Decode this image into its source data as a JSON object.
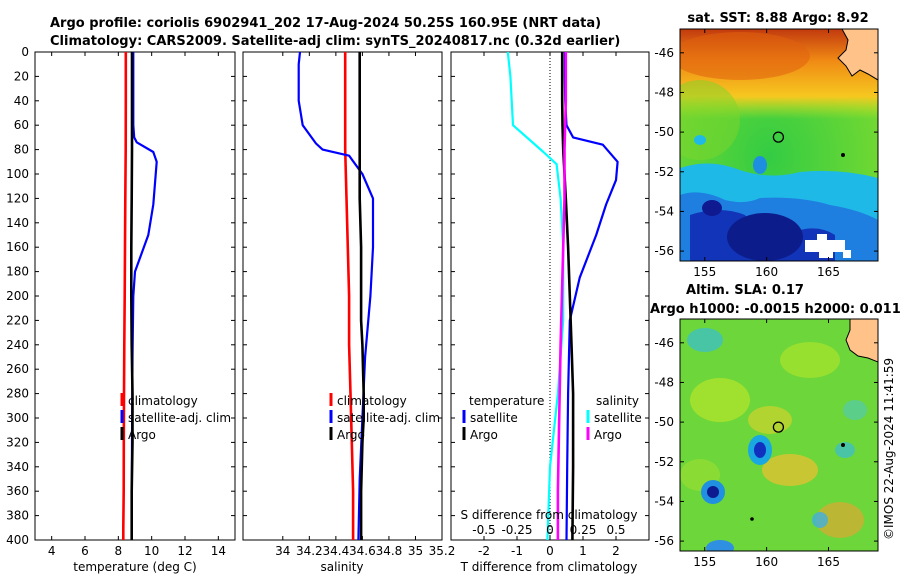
{
  "header": {
    "line1": "Argo profile: coriolis 6902941_202 17-Aug-2024 50.25S 160.95E (NRT data)",
    "line2": "Climatology: CARS2009. Satellite-adj clim: synTS_20240817.nc (0.32d earlier)"
  },
  "watermark": "©IMOS 22-Aug-2024 11:41:59",
  "colors": {
    "climatology": "#ff0000",
    "satellite": "#0000ff",
    "argo": "#000000",
    "salinity_satellite": "#00ffff",
    "salinity_diff": "#ff00ff"
  },
  "chart_data": [
    {
      "type": "line",
      "title": "",
      "xlabel": "temperature (deg C)",
      "ylabel": "",
      "xlim": [
        3,
        15
      ],
      "ylim": [
        400,
        0
      ],
      "xticks": [
        "4",
        "6",
        "8",
        "10",
        "12",
        "14"
      ],
      "xtick_values": [
        4,
        6,
        8,
        10,
        12,
        14
      ],
      "yticks": [
        "0",
        "20",
        "40",
        "60",
        "80",
        "100",
        "120",
        "140",
        "160",
        "180",
        "200",
        "220",
        "240",
        "260",
        "280",
        "300",
        "320",
        "340",
        "360",
        "380",
        "400"
      ],
      "ytick_values": [
        0,
        20,
        40,
        60,
        80,
        100,
        120,
        140,
        160,
        180,
        200,
        220,
        240,
        260,
        280,
        300,
        320,
        340,
        360,
        380,
        400
      ],
      "legend": [
        "climatology",
        "satellite-adj. clim",
        "Argo"
      ],
      "series": [
        {
          "name": "climatology",
          "color": "#ff0000",
          "x": [
            8.45,
            8.45,
            8.44,
            8.42,
            8.4,
            8.38,
            8.36,
            8.34,
            8.33,
            8.32,
            8.3,
            8.3
          ],
          "y": [
            0,
            40,
            80,
            120,
            160,
            200,
            240,
            280,
            320,
            360,
            390,
            400
          ]
        },
        {
          "name": "satellite-adj. clim",
          "color": "#0000ff",
          "x": [
            8.9,
            8.9,
            8.9,
            8.95,
            9.1,
            10.1,
            10.3,
            10.1,
            9.8,
            9.0,
            8.9,
            8.85,
            8.82,
            8.8
          ],
          "y": [
            0,
            40,
            60,
            70,
            74,
            82,
            90,
            125,
            150,
            180,
            200,
            250,
            320,
            400
          ]
        },
        {
          "name": "Argo",
          "color": "#000000",
          "x": [
            8.82,
            8.82,
            8.82,
            8.8,
            8.78,
            8.78,
            8.8,
            8.85,
            8.85,
            8.8,
            8.8
          ],
          "y": [
            0,
            40,
            80,
            120,
            160,
            200,
            240,
            280,
            320,
            360,
            400
          ]
        }
      ]
    },
    {
      "type": "line",
      "title": "",
      "xlabel": "salinity",
      "ylabel": "",
      "xlim": [
        33.7,
        35.2
      ],
      "ylim": [
        400,
        0
      ],
      "xticks": [
        "34",
        "34.2",
        "34.4",
        "34.6",
        "34.8",
        "35",
        "35.2"
      ],
      "xtick_values": [
        34,
        34.2,
        34.4,
        34.6,
        34.8,
        35,
        35.2
      ],
      "legend": [
        "climatology",
        "satellite-adj. clim",
        "Argo"
      ],
      "series": [
        {
          "name": "climatology",
          "color": "#ff0000",
          "x": [
            34.47,
            34.47,
            34.47,
            34.48,
            34.49,
            34.5,
            34.5,
            34.51,
            34.52,
            34.53,
            34.53
          ],
          "y": [
            0,
            40,
            80,
            120,
            160,
            200,
            240,
            280,
            320,
            360,
            400
          ]
        },
        {
          "name": "satellite-adj. clim",
          "color": "#0000ff",
          "x": [
            34.13,
            34.12,
            34.12,
            34.15,
            34.25,
            34.3,
            34.5,
            34.6,
            34.68,
            34.68,
            34.66,
            34.62,
            34.6,
            34.58,
            34.57
          ],
          "y": [
            0,
            10,
            40,
            60,
            75,
            80,
            85,
            100,
            120,
            160,
            200,
            250,
            300,
            350,
            400
          ]
        },
        {
          "name": "Argo",
          "color": "#000000",
          "x": [
            34.58,
            34.58,
            34.58,
            34.58,
            34.59,
            34.59,
            34.59,
            34.6,
            34.61,
            34.61,
            34.6,
            34.59,
            34.59
          ],
          "y": [
            0,
            40,
            80,
            120,
            160,
            200,
            220,
            240,
            280,
            300,
            320,
            360,
            400
          ]
        }
      ]
    },
    {
      "type": "line",
      "title": "",
      "xlabel": "T difference from climatology",
      "ylabel": "",
      "xlim": [
        -3.0,
        3.0
      ],
      "ylim": [
        400,
        0
      ],
      "xticks": [
        "-2",
        "-1",
        "0",
        "1",
        "2"
      ],
      "xtick_values": [
        -2,
        -1,
        0,
        1,
        2
      ],
      "secondary_x": {
        "label": "S difference from climatology",
        "xlim": [
          -0.75,
          0.75
        ],
        "xticks": [
          "-0.5",
          "-0.25",
          "0",
          "0.25",
          "0.5"
        ],
        "xtick_values": [
          -0.5,
          -0.25,
          0,
          0.25,
          0.5
        ]
      },
      "legend_temperature_title": "temperature",
      "legend_salinity_title": "salinity",
      "legend": [
        "satellite",
        "Argo",
        "satellite",
        "Argo"
      ],
      "series": [
        {
          "name": "temperature satellite",
          "color": "#0000ff",
          "x": [
            0.45,
            0.45,
            0.46,
            0.5,
            0.7,
            1.6,
            2.05,
            2.0,
            1.7,
            1.4,
            0.9,
            0.6,
            0.55,
            0.52,
            0.5
          ],
          "y": [
            0,
            20,
            40,
            60,
            70,
            76,
            90,
            105,
            125,
            150,
            185,
            220,
            280,
            340,
            400
          ]
        },
        {
          "name": "temperature Argo",
          "color": "#000000",
          "x": [
            0.37,
            0.37,
            0.38,
            0.4,
            0.48,
            0.55,
            0.6,
            0.65,
            0.7,
            0.7,
            0.68
          ],
          "y": [
            0,
            40,
            60,
            80,
            120,
            160,
            200,
            240,
            280,
            340,
            400
          ]
        },
        {
          "name": "salinity satellite",
          "color": "#00ffff",
          "x": [
            -0.32,
            -0.3,
            -0.28,
            -0.05,
            0.05,
            0.08,
            0.1,
            0.1,
            0.06,
            0.0,
            -0.02
          ],
          "y": [
            0,
            20,
            60,
            82,
            92,
            120,
            160,
            220,
            280,
            340,
            400
          ]
        },
        {
          "name": "salinity Argo",
          "color": "#ff00ff",
          "x": [
            0.12,
            0.12,
            0.11,
            0.11,
            0.1,
            0.09,
            0.08,
            0.07,
            0.06,
            0.06
          ],
          "y": [
            0,
            40,
            80,
            120,
            160,
            200,
            240,
            300,
            360,
            400
          ]
        }
      ]
    },
    {
      "type": "heatmap",
      "title": "sat. SST: 8.88 Argo: 8.92",
      "xlim": [
        153,
        169
      ],
      "ylim": [
        -56.5,
        -44.8
      ],
      "xticks": [
        "155",
        "160",
        "165"
      ],
      "xtick_values": [
        155,
        160,
        165
      ],
      "yticks": [
        "-46",
        "-48",
        "-50",
        "-52",
        "-54",
        "-56"
      ],
      "ytick_values": [
        -46,
        -48,
        -50,
        -52,
        -54,
        -56
      ],
      "argo_position": {
        "lon": 160.95,
        "lat": -50.25
      }
    },
    {
      "type": "heatmap",
      "title": "Altim. SLA: 0.17",
      "title2": "Argo h1000: -0.0015 h2000: 0.011",
      "xlim": [
        153,
        169
      ],
      "ylim": [
        -56.5,
        -44.8
      ],
      "xticks": [
        "155",
        "160",
        "165"
      ],
      "xtick_values": [
        155,
        160,
        165
      ],
      "yticks": [
        "-46",
        "-48",
        "-50",
        "-52",
        "-54",
        "-56"
      ],
      "ytick_values": [
        -46,
        -48,
        -50,
        -52,
        -54,
        -56
      ],
      "argo_position": {
        "lon": 160.95,
        "lat": -50.25
      }
    }
  ]
}
